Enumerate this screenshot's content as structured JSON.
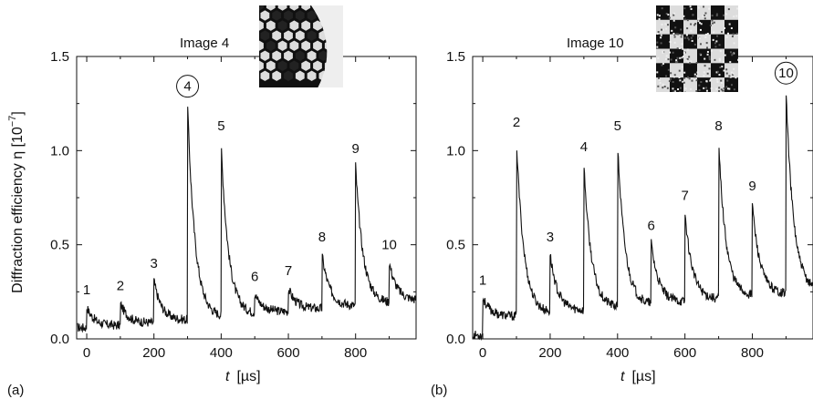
{
  "chart_data": [
    {
      "type": "line",
      "panel_label": "(a)",
      "image_title": "Image 4",
      "circled_peak": "4",
      "inset_pattern": "honeycomb",
      "xlabel_italic": "t",
      "xlabel_unit": "[µs]",
      "ylabel": "Diffraction efficiency η [10",
      "ylabel_exp": "−7",
      "ylabel_close": "]",
      "xlim": [
        -30,
        980
      ],
      "ylim": [
        0,
        1.5
      ],
      "xticks": [
        "0",
        "200",
        "400",
        "600",
        "800"
      ],
      "xtick_values": [
        0,
        200,
        400,
        600,
        800
      ],
      "yticks": [
        "0.0",
        "0.5",
        "1.0",
        "1.5"
      ],
      "ytick_values": [
        0,
        0.5,
        1.0,
        1.5
      ],
      "peaks": [
        {
          "label": "1",
          "t": 0,
          "value": 0.17
        },
        {
          "label": "2",
          "t": 100,
          "value": 0.19
        },
        {
          "label": "3",
          "t": 200,
          "value": 0.31
        },
        {
          "label": "4",
          "t": 300,
          "value": 1.25
        },
        {
          "label": "5",
          "t": 400,
          "value": 1.04
        },
        {
          "label": "6",
          "t": 500,
          "value": 0.24
        },
        {
          "label": "7",
          "t": 600,
          "value": 0.27
        },
        {
          "label": "8",
          "t": 700,
          "value": 0.45
        },
        {
          "label": "9",
          "t": 800,
          "value": 0.92
        },
        {
          "label": "10",
          "t": 900,
          "value": 0.41
        }
      ],
      "baseline_before": 0.06
    },
    {
      "type": "line",
      "panel_label": "(b)",
      "image_title": "Image 10",
      "circled_peak": "10",
      "inset_pattern": "checkerboard",
      "xlabel_italic": "t",
      "xlabel_unit": "[µs]",
      "xlim": [
        -30,
        980
      ],
      "ylim": [
        0,
        1.5
      ],
      "xticks": [
        "0",
        "200",
        "400",
        "600",
        "800"
      ],
      "xtick_values": [
        0,
        200,
        400,
        600,
        800
      ],
      "yticks": [
        "0.0",
        "0.5",
        "1.0",
        "1.5"
      ],
      "ytick_values": [
        0,
        0.5,
        1.0,
        1.5
      ],
      "peaks": [
        {
          "label": "1",
          "t": 0,
          "value": 0.22
        },
        {
          "label": "2",
          "t": 100,
          "value": 1.06
        },
        {
          "label": "3",
          "t": 200,
          "value": 0.45
        },
        {
          "label": "4",
          "t": 300,
          "value": 0.93
        },
        {
          "label": "5",
          "t": 400,
          "value": 1.04
        },
        {
          "label": "6",
          "t": 500,
          "value": 0.51
        },
        {
          "label": "7",
          "t": 600,
          "value": 0.67
        },
        {
          "label": "8",
          "t": 700,
          "value": 1.04
        },
        {
          "label": "9",
          "t": 800,
          "value": 0.72
        },
        {
          "label": "10",
          "t": 900,
          "value": 1.32
        }
      ],
      "baseline_before": 0.02
    }
  ]
}
